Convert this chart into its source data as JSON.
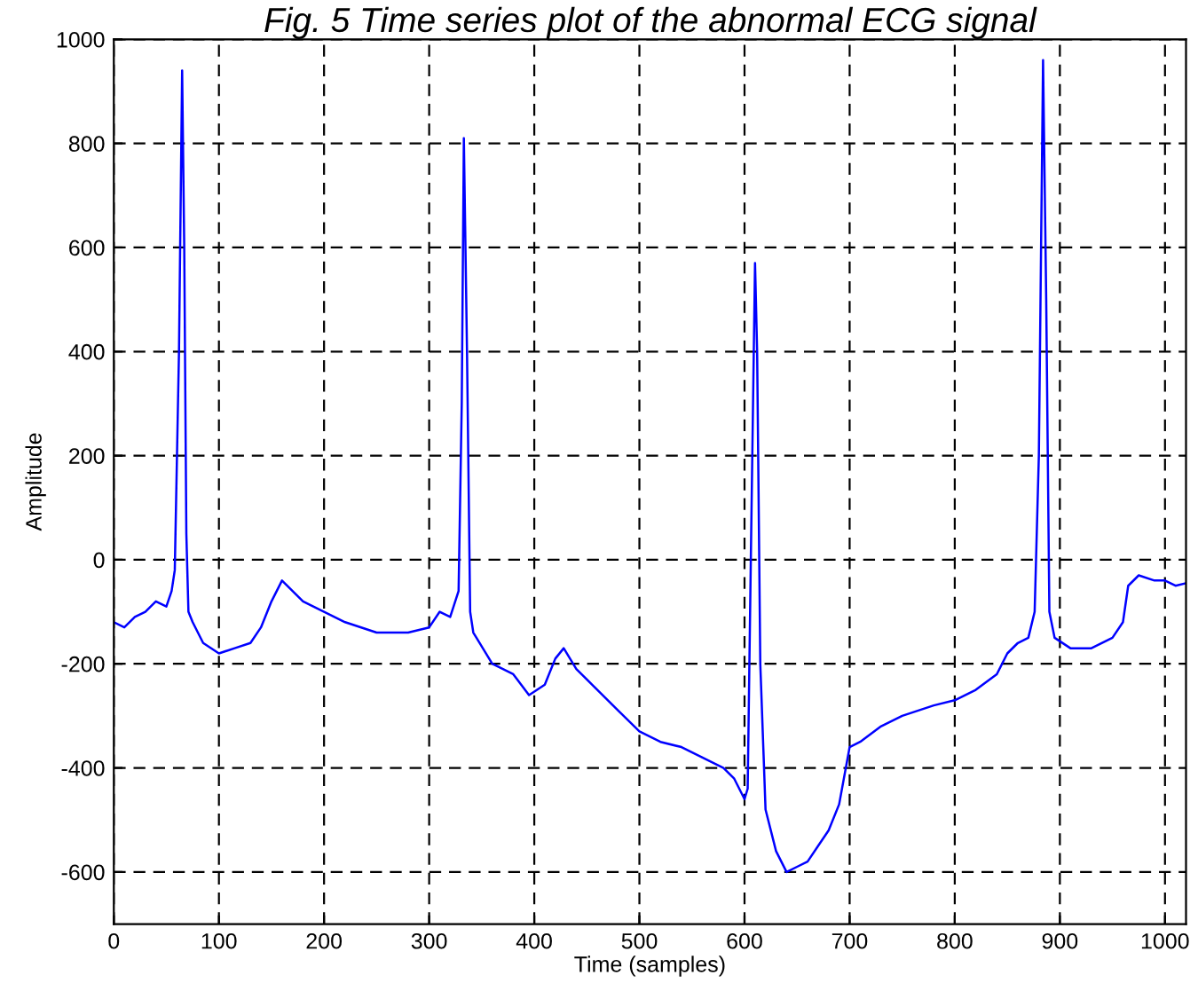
{
  "chart_data": {
    "type": "line",
    "title": "Fig. 5 Time series plot of the abnormal ECG signal",
    "xlabel": "Time (samples)",
    "ylabel": "Amplitude",
    "x": [
      0,
      10,
      20,
      30,
      40,
      50,
      55,
      58,
      62,
      65,
      67,
      69,
      71,
      75,
      85,
      100,
      115,
      130,
      140,
      150,
      160,
      170,
      180,
      200,
      220,
      250,
      280,
      300,
      310,
      320,
      328,
      331,
      333,
      336,
      339,
      342,
      345,
      360,
      380,
      395,
      410,
      420,
      428,
      440,
      460,
      480,
      500,
      520,
      540,
      560,
      580,
      590,
      595,
      600,
      603,
      606,
      610,
      612,
      615,
      620,
      630,
      640,
      650,
      660,
      670,
      680,
      690,
      700,
      710,
      730,
      750,
      780,
      800,
      820,
      840,
      850,
      860,
      870,
      876,
      880,
      884,
      887,
      890,
      895,
      910,
      930,
      950,
      960,
      965,
      975,
      990,
      1000,
      1010,
      1020
    ],
    "series": [
      {
        "color": "#0000ff",
        "values": [
          -120,
          -130,
          -110,
          -100,
          -80,
          -90,
          -60,
          -20,
          400,
          940,
          600,
          50,
          -100,
          -120,
          -160,
          -180,
          -170,
          -160,
          -130,
          -80,
          -40,
          -60,
          -80,
          -100,
          -120,
          -140,
          -140,
          -130,
          -100,
          -110,
          -60,
          300,
          810,
          400,
          -100,
          -140,
          -150,
          -200,
          -220,
          -260,
          -240,
          -190,
          -170,
          -210,
          -250,
          -290,
          -330,
          -350,
          -360,
          -380,
          -400,
          -420,
          -440,
          -460,
          -440,
          0,
          570,
          400,
          -200,
          -480,
          -560,
          -600,
          -590,
          -580,
          -550,
          -520,
          -470,
          -360,
          -350,
          -320,
          -300,
          -280,
          -270,
          -250,
          -220,
          -180,
          -160,
          -150,
          -100,
          200,
          960,
          500,
          -100,
          -150,
          -170,
          -170,
          -150,
          -120,
          -50,
          -30,
          -40,
          -40,
          -50,
          -45
        ]
      }
    ],
    "xlim": [
      0,
      1020
    ],
    "ylim": [
      -700,
      1000
    ],
    "xticks": [
      0,
      100,
      200,
      300,
      400,
      500,
      600,
      700,
      800,
      900,
      1000
    ],
    "yticks": [
      -600,
      -400,
      -200,
      0,
      200,
      400,
      600,
      800,
      1000
    ],
    "grid": true
  }
}
